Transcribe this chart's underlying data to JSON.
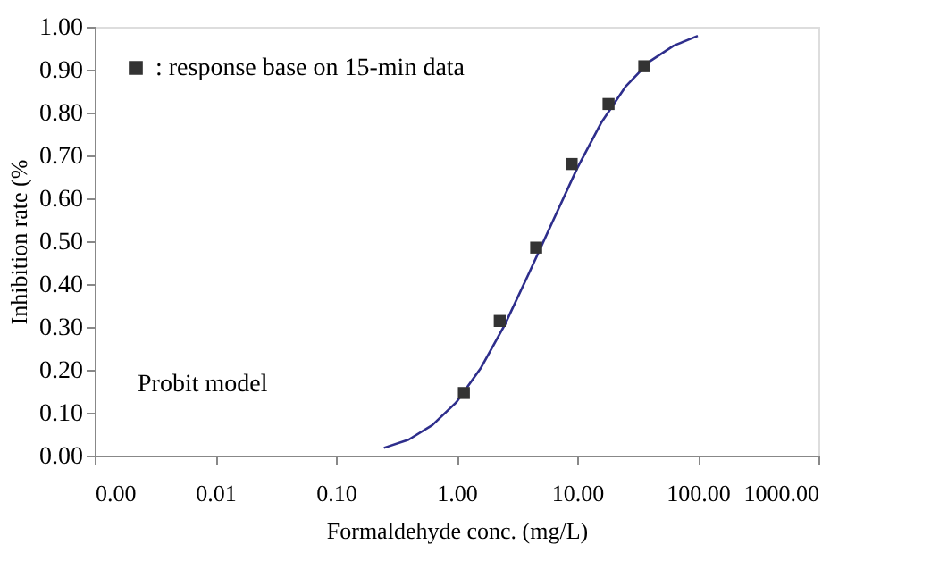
{
  "chart_data": {
    "type": "line",
    "xlabel": "Formaldehyde conc. (mg/L)",
    "ylabel": "Inhibition rate (%",
    "log": "x",
    "grid": false,
    "legend": "top left",
    "xlim": [
      0.001,
      1000
    ],
    "ylim": [
      0,
      1
    ],
    "xticks": [
      {
        "value": 0.001,
        "label": "0.00"
      },
      {
        "value": 0.01,
        "label": "0.01"
      },
      {
        "value": 0.1,
        "label": "0.10"
      },
      {
        "value": 1,
        "label": "1.00"
      },
      {
        "value": 10,
        "label": "10.00"
      },
      {
        "value": 100,
        "label": "100.00"
      },
      {
        "value": 1000,
        "label": "1000.00"
      }
    ],
    "yticks": [
      {
        "value": 0,
        "label": "0.00"
      },
      {
        "value": 0.1,
        "label": "0.10"
      },
      {
        "value": 0.2,
        "label": "0.20"
      },
      {
        "value": 0.3,
        "label": "0.30"
      },
      {
        "value": 0.4,
        "label": "0.40"
      },
      {
        "value": 0.5,
        "label": "0.50"
      },
      {
        "value": 0.6,
        "label": "0.60"
      },
      {
        "value": 0.7,
        "label": "0.70"
      },
      {
        "value": 0.8,
        "label": "0.80"
      },
      {
        "value": 0.9,
        "label": "0.90"
      },
      {
        "value": 1,
        "label": "1.00"
      }
    ],
    "series": [
      {
        "type": "line",
        "color": "#2e2e8c",
        "marker": "none",
        "line_style": "solid",
        "x": [
          0.25,
          0.4,
          0.63,
          1,
          1.58,
          2.51,
          3.98,
          6.31,
          10,
          15.8,
          25.1,
          39.8,
          63.1,
          100
        ],
        "values": [
          0.018,
          0.037,
          0.071,
          0.125,
          0.203,
          0.305,
          0.425,
          0.548,
          0.67,
          0.776,
          0.86,
          0.919,
          0.956,
          0.979
        ]
      },
      {
        "type": "scatter",
        "name": ": response base on 15-min data",
        "color": "#333333",
        "marker": "square",
        "x": [
          1.15,
          2.28,
          4.57,
          9.0,
          18.2,
          36
        ],
        "values": [
          0.146,
          0.314,
          0.485,
          0.68,
          0.82,
          0.908
        ]
      }
    ],
    "annotations": [
      "Probit model"
    ]
  }
}
